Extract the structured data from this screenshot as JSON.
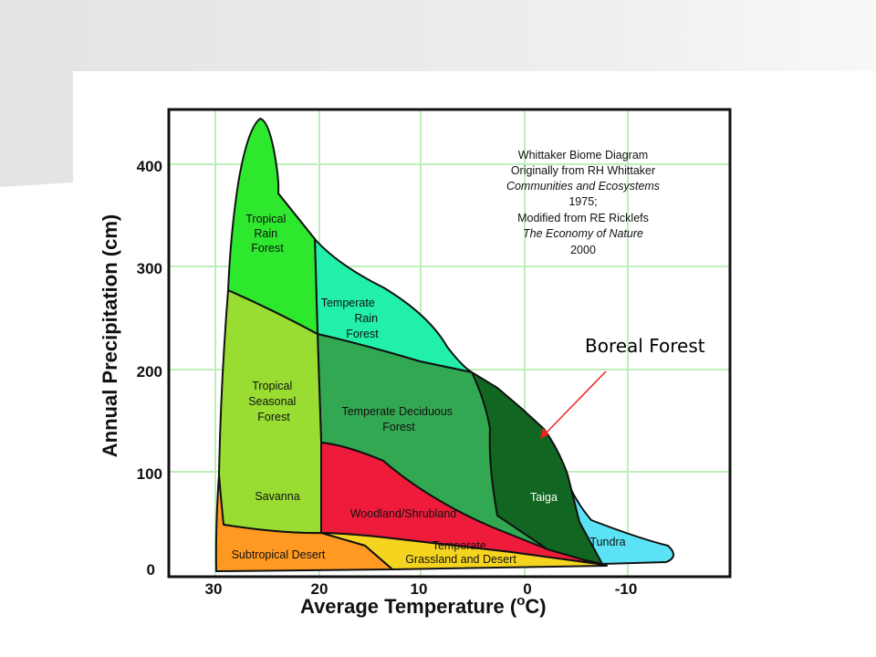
{
  "slide": {
    "callout_label": "Boreal Forest"
  },
  "diagram": {
    "y_axis_label": "Annual Precipitation (cm)",
    "x_axis_label_main": "Average Temperature (",
    "x_axis_label_unit": "C)",
    "x_axis_label_degree": "o",
    "y_ticks": [
      "0",
      "100",
      "200",
      "300",
      "400"
    ],
    "x_ticks": [
      "30",
      "20",
      "10",
      "0",
      "-10"
    ],
    "note": [
      "Whittaker Biome Diagram",
      "Originally from RH Whittaker",
      "Communities and Ecosystems",
      "1975;",
      "Modified from RE Ricklefs",
      "The Economy of Nature",
      "2000"
    ],
    "biomes": {
      "tropical_rain_forest": [
        "Tropical",
        "Rain",
        "Forest"
      ],
      "temperate_rain_forest": [
        "Temperate",
        "Rain",
        "Forest"
      ],
      "tropical_seasonal_forest": [
        "Tropical",
        "Seasonal",
        "Forest"
      ],
      "temperate_deciduous_forest": [
        "Temperate Deciduous",
        "Forest"
      ],
      "taiga": "Taiga",
      "savanna": "Savanna",
      "woodland_shrubland": "Woodland/Shrubland",
      "tundra": "Tundra",
      "temperate_grassland": [
        "Temperate",
        "Grassland and Desert"
      ],
      "subtropical_desert": "Subtropical Desert"
    },
    "colors": {
      "tropical_rain_forest": "#2ee82e",
      "temperate_rain_forest": "#22f0a8",
      "tropical_seasonal_forest": "#99dd33",
      "temperate_deciduous_forest": "#33a852",
      "taiga": "#116622",
      "woodland_shrubland": "#ee1c3a",
      "subtropical_desert": "#ff9922",
      "temperate_grassland": "#f5d420",
      "tundra": "#5be3f5",
      "grid": "#bfeebb",
      "callout_arrow": "#ee2222"
    }
  }
}
